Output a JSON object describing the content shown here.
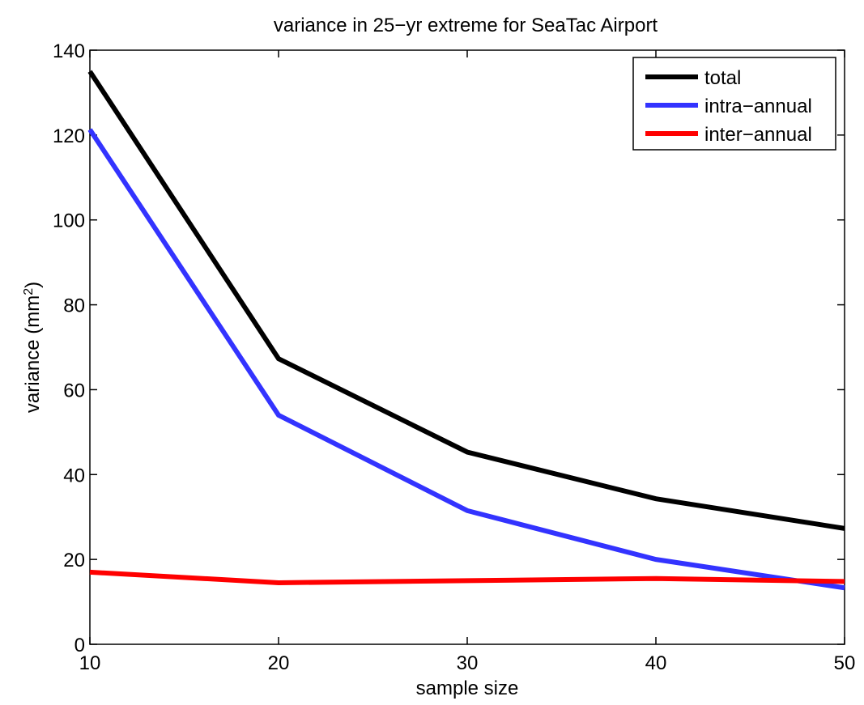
{
  "chart_data": {
    "type": "line",
    "title": "variance in 25−yr extreme for SeaTac Airport",
    "xlabel": "sample size",
    "ylabel_prefix": "variance (mm",
    "ylabel_sup": "2",
    "ylabel_suffix": ")",
    "xlim": [
      10,
      50
    ],
    "ylim": [
      0,
      140
    ],
    "xticks": [
      10,
      20,
      30,
      40,
      50
    ],
    "yticks": [
      0,
      20,
      40,
      60,
      80,
      100,
      120,
      140
    ],
    "x": [
      10,
      20,
      30,
      40,
      50
    ],
    "series": [
      {
        "name": "total",
        "color": "#000000",
        "values": [
          135,
          67.3,
          45.3,
          34.3,
          27.3
        ]
      },
      {
        "name": "intra−annual",
        "color": "#3333ff",
        "values": [
          121.3,
          54,
          31.5,
          20,
          13.3
        ]
      },
      {
        "name": "inter−annual",
        "color": "#ff0000",
        "values": [
          17,
          14.5,
          15,
          15.5,
          14.8
        ]
      }
    ],
    "legend_position": "top-right",
    "grid": false
  }
}
